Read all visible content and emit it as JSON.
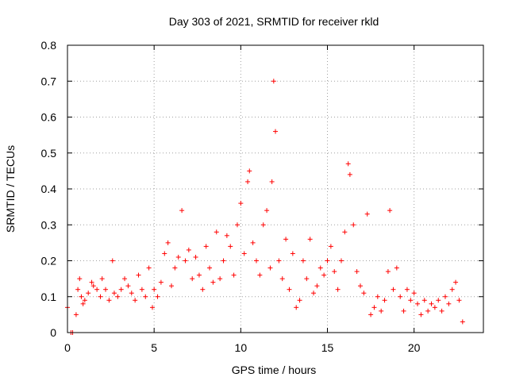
{
  "chart_data": {
    "type": "scatter",
    "title": "Day 303 of 2021, SRMTID for receiver rkld",
    "xlabel": "GPS time / hours",
    "ylabel": "SRMTID / TECUs",
    "xlim": [
      0,
      24
    ],
    "ylim": [
      0,
      0.8
    ],
    "xticks": [
      0,
      5,
      10,
      15,
      20
    ],
    "yticks": [
      0,
      0.1,
      0.2,
      0.3,
      0.4,
      0.5,
      0.6,
      0.7,
      0.8
    ],
    "grid": true,
    "marker": "+",
    "color": "#ff0000",
    "series": [
      {
        "name": "SRMTID",
        "x": [
          0.0,
          0.2,
          0.3,
          0.5,
          0.6,
          0.7,
          0.8,
          0.9,
          1.0,
          1.2,
          1.4,
          1.5,
          1.7,
          1.9,
          2.0,
          2.2,
          2.4,
          2.6,
          2.7,
          2.9,
          3.1,
          3.3,
          3.5,
          3.7,
          3.9,
          4.1,
          4.3,
          4.5,
          4.7,
          4.9,
          5.0,
          5.2,
          5.4,
          5.6,
          5.8,
          6.0,
          6.2,
          6.4,
          6.6,
          6.8,
          7.0,
          7.2,
          7.4,
          7.6,
          7.8,
          8.0,
          8.2,
          8.4,
          8.6,
          8.8,
          9.0,
          9.2,
          9.4,
          9.6,
          9.8,
          10.0,
          10.2,
          10.4,
          10.5,
          10.7,
          10.9,
          11.1,
          11.3,
          11.5,
          11.7,
          11.8,
          11.9,
          12.0,
          12.2,
          12.4,
          12.6,
          12.8,
          13.0,
          13.2,
          13.4,
          13.6,
          13.8,
          14.0,
          14.2,
          14.4,
          14.6,
          14.8,
          15.0,
          15.2,
          15.4,
          15.6,
          15.8,
          16.0,
          16.2,
          16.3,
          16.5,
          16.7,
          16.9,
          17.1,
          17.3,
          17.5,
          17.7,
          17.9,
          18.1,
          18.3,
          18.5,
          18.6,
          18.8,
          19.0,
          19.2,
          19.4,
          19.6,
          19.8,
          20.0,
          20.2,
          20.4,
          20.6,
          20.8,
          21.0,
          21.2,
          21.4,
          21.6,
          21.8,
          22.0,
          22.2,
          22.4,
          22.6,
          22.8
        ],
        "y": [
          0.07,
          0.0,
          0.0,
          0.05,
          0.12,
          0.15,
          0.1,
          0.08,
          0.09,
          0.11,
          0.14,
          0.13,
          0.12,
          0.1,
          0.15,
          0.12,
          0.09,
          0.2,
          0.11,
          0.1,
          0.12,
          0.15,
          0.13,
          0.11,
          0.09,
          0.16,
          0.12,
          0.1,
          0.18,
          0.07,
          0.12,
          0.1,
          0.14,
          0.22,
          0.25,
          0.13,
          0.18,
          0.21,
          0.34,
          0.2,
          0.23,
          0.15,
          0.21,
          0.16,
          0.12,
          0.24,
          0.18,
          0.14,
          0.28,
          0.15,
          0.2,
          0.27,
          0.24,
          0.16,
          0.3,
          0.36,
          0.22,
          0.42,
          0.45,
          0.25,
          0.2,
          0.16,
          0.3,
          0.34,
          0.18,
          0.42,
          0.7,
          0.56,
          0.2,
          0.15,
          0.26,
          0.12,
          0.22,
          0.07,
          0.09,
          0.2,
          0.15,
          0.26,
          0.11,
          0.13,
          0.18,
          0.16,
          0.2,
          0.24,
          0.17,
          0.12,
          0.2,
          0.28,
          0.47,
          0.44,
          0.3,
          0.17,
          0.13,
          0.11,
          0.33,
          0.05,
          0.07,
          0.1,
          0.06,
          0.09,
          0.17,
          0.34,
          0.12,
          0.18,
          0.1,
          0.06,
          0.12,
          0.09,
          0.11,
          0.08,
          0.05,
          0.09,
          0.06,
          0.08,
          0.07,
          0.09,
          0.06,
          0.1,
          0.08,
          0.12,
          0.14,
          0.09,
          0.03
        ]
      }
    ]
  }
}
